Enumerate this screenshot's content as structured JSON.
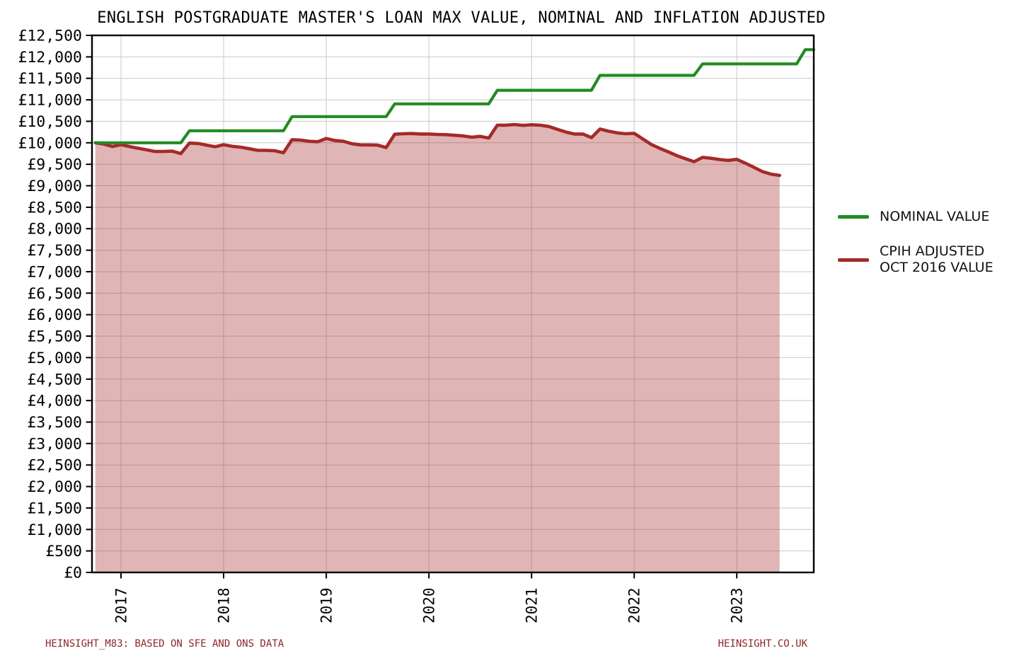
{
  "title": "ENGLISH POSTGRADUATE MASTER'S LOAN MAX VALUE, NOMINAL AND INFLATION ADJUSTED",
  "footer": {
    "left": "HEINSIGHT_M83: BASED ON SFE AND ONS DATA",
    "right": "HEINSIGHT.CO.UK"
  },
  "legend": {
    "position": "right",
    "items": [
      {
        "label": "NOMINAL VALUE",
        "color": "#228B22"
      },
      {
        "label_lines": [
          "CPIH ADJUSTED",
          "OCT 2016 VALUE"
        ],
        "color": "#A52A2A"
      }
    ]
  },
  "colors": {
    "nominal_line": "#228B22",
    "cpih_line": "#A52A2A",
    "cpih_fill": "rgba(165,42,42,0.35)",
    "grid": "#c9c9c9",
    "axis": "#000000",
    "footer_text": "#8e2626",
    "background": "#ffffff"
  },
  "chart_data": {
    "type": "line",
    "title": "ENGLISH POSTGRADUATE MASTER'S LOAN MAX VALUE, NOMINAL AND INFLATION ADJUSTED",
    "xlabel": "",
    "ylabel": "",
    "start_month": "2016-10",
    "points_per_year": 12,
    "x_ticks": [
      2017,
      2018,
      2019,
      2020,
      2021,
      2022,
      2023
    ],
    "y_axis": {
      "min": 0,
      "max": 12500,
      "step": 500,
      "prefix": "£"
    },
    "ylim": [
      0,
      12500
    ],
    "grid": true,
    "grid_color": "#c9c9c9",
    "legend_position": "right",
    "nominal_value_by_academic_year": {
      "2016/17": 10000,
      "2017/18": 10280,
      "2018/19": 10609,
      "2019/20": 10906,
      "2020/21": 11222,
      "2021/22": 11570,
      "2022/23": 11836,
      "2023/24": 12167
    },
    "series": [
      {
        "id": "nominal",
        "name": "NOMINAL VALUE",
        "color": "#228B22",
        "width": 4.2,
        "fill": null,
        "values": [
          10000,
          10000,
          10000,
          10000,
          10000,
          10000,
          10000,
          10000,
          10000,
          10000,
          10000,
          10280,
          10280,
          10280,
          10280,
          10280,
          10280,
          10280,
          10280,
          10280,
          10280,
          10280,
          10280,
          10609,
          10609,
          10609,
          10609,
          10609,
          10609,
          10609,
          10609,
          10609,
          10609,
          10609,
          10609,
          10906,
          10906,
          10906,
          10906,
          10906,
          10906,
          10906,
          10906,
          10906,
          10906,
          10906,
          10906,
          11222,
          11222,
          11222,
          11222,
          11222,
          11222,
          11222,
          11222,
          11222,
          11222,
          11222,
          11222,
          11570,
          11570,
          11570,
          11570,
          11570,
          11570,
          11570,
          11570,
          11570,
          11570,
          11570,
          11570,
          11836,
          11836,
          11836,
          11836,
          11836,
          11836,
          11836,
          11836,
          11836,
          11836,
          11836,
          11836,
          12167,
          12167
        ]
      },
      {
        "id": "cpih-adjusted",
        "name": "CPIH ADJUSTED OCT 2016 VALUE",
        "color": "#A52A2A",
        "width": 4.6,
        "fill": "rgba(165,42,42,0.35)",
        "values": [
          10000,
          9970,
          9915,
          9955,
          9912,
          9873,
          9835,
          9797,
          9797,
          9806,
          9750,
          9994,
          9984,
          9946,
          9908,
          9955,
          9917,
          9898,
          9861,
          9824,
          9824,
          9814,
          9768,
          10072,
          10062,
          10034,
          10025,
          10100,
          10053,
          10034,
          9978,
          9950,
          9950,
          9945,
          9890,
          10200,
          10210,
          10215,
          10205,
          10205,
          10195,
          10190,
          10175,
          10160,
          10130,
          10150,
          10110,
          10410,
          10410,
          10425,
          10405,
          10420,
          10410,
          10380,
          10315,
          10250,
          10205,
          10205,
          10120,
          10320,
          10270,
          10230,
          10210,
          10220,
          10090,
          9960,
          9870,
          9790,
          9700,
          9630,
          9560,
          9660,
          9640,
          9610,
          9590,
          9615,
          9525,
          9430,
          9330,
          9270,
          9240
        ]
      }
    ]
  }
}
